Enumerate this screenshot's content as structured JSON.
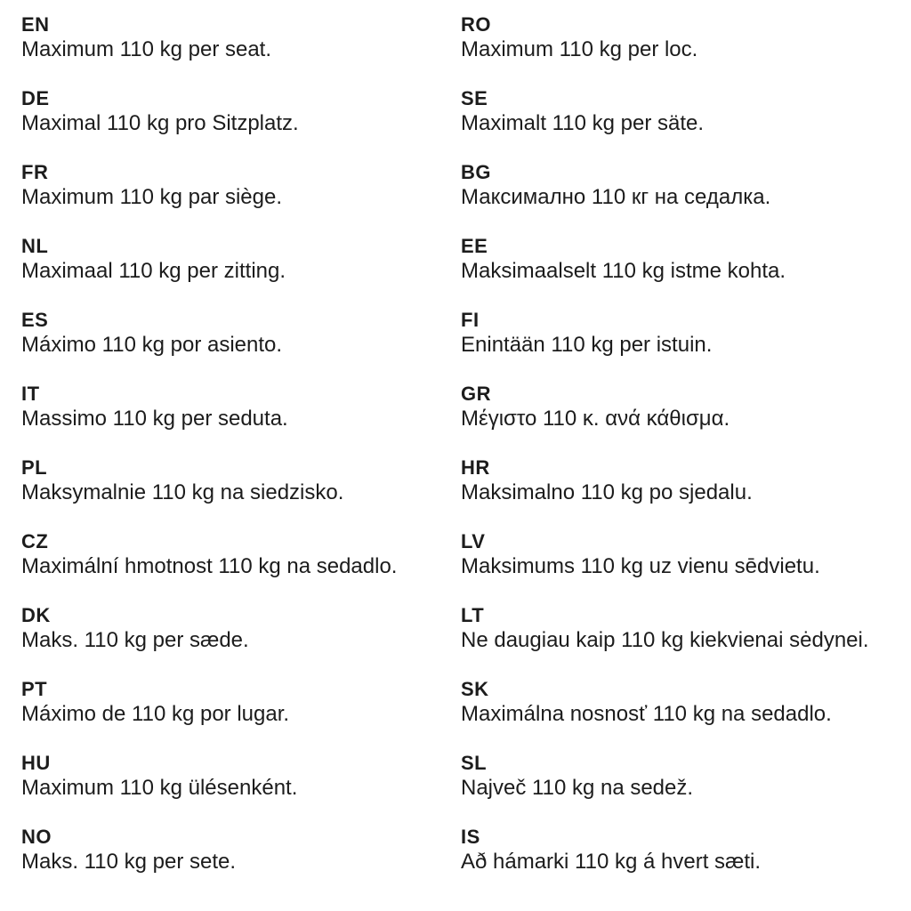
{
  "colors": {
    "background": "#ffffff",
    "text": "#1c1c1c"
  },
  "columns": {
    "left": {
      "entries": [
        {
          "code": "EN",
          "text": "Maximum 110 kg per seat."
        },
        {
          "code": "DE",
          "text": "Maximal 110 kg pro Sitzplatz."
        },
        {
          "code": "FR",
          "text": "Maximum 110 kg par siège."
        },
        {
          "code": "NL",
          "text": "Maximaal 110 kg per zitting."
        },
        {
          "code": "ES",
          "text": "Máximo 110 kg por asiento."
        },
        {
          "code": "IT",
          "text": "Massimo 110 kg per seduta."
        },
        {
          "code": "PL",
          "text": "Maksymalnie 110 kg na siedzisko."
        },
        {
          "code": "CZ",
          "text": "Maximální hmotnost 110 kg na sedadlo."
        },
        {
          "code": "DK",
          "text": "Maks. 110 kg per sæde."
        },
        {
          "code": "PT",
          "text": "Máximo de 110 kg por lugar."
        },
        {
          "code": "HU",
          "text": "Maximum 110 kg ülésenként."
        },
        {
          "code": "NO",
          "text": "Maks. 110 kg per sete."
        }
      ]
    },
    "right": {
      "entries": [
        {
          "code": "RO",
          "text": "Maximum 110 kg per loc."
        },
        {
          "code": "SE",
          "text": "Maximalt 110 kg per säte."
        },
        {
          "code": "BG",
          "text": "Максимално 110 кг на седалка."
        },
        {
          "code": "EE",
          "text": "Maksimaalselt 110 kg istme kohta."
        },
        {
          "code": "FI",
          "text": "Enintään 110 kg per istuin."
        },
        {
          "code": "GR",
          "text": "Μέγιστο 110 κ. ανά κάθισμα."
        },
        {
          "code": "HR",
          "text": "Maksimalno 110 kg po sjedalu."
        },
        {
          "code": "LV",
          "text": "Maksimums 110 kg uz vienu sēdvietu."
        },
        {
          "code": "LT",
          "text": "Ne daugiau kaip 110 kg kiekvienai sėdynei."
        },
        {
          "code": "SK",
          "text": "Maximálna nosnosť 110 kg na sedadlo."
        },
        {
          "code": "SL",
          "text": "Največ 110 kg na sedež."
        },
        {
          "code": "IS",
          "text": "Að hámarki 110 kg á hvert sæti."
        }
      ]
    }
  }
}
